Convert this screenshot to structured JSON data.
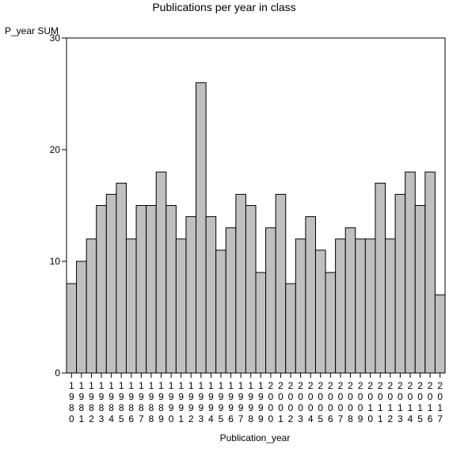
{
  "chart_data": {
    "type": "bar",
    "title": "Publications per year in class",
    "ylabel": "P_year SUM",
    "xlabel": "Publication_year",
    "ylim": [
      0,
      30
    ],
    "yticks": [
      0,
      10,
      20,
      30
    ],
    "categories": [
      "1980",
      "1981",
      "1982",
      "1983",
      "1984",
      "1985",
      "1986",
      "1987",
      "1988",
      "1989",
      "1990",
      "1991",
      "1992",
      "1993",
      "1994",
      "1995",
      "1996",
      "1997",
      "1998",
      "1999",
      "2000",
      "2001",
      "2002",
      "2003",
      "2004",
      "2005",
      "2006",
      "2007",
      "2008",
      "2009",
      "2010",
      "2011",
      "2012",
      "2013",
      "2014",
      "2015",
      "2016",
      "2017"
    ],
    "values": [
      8,
      10,
      12,
      15,
      16,
      17,
      12,
      15,
      15,
      18,
      15,
      12,
      14,
      26,
      14,
      11,
      13,
      16,
      15,
      9,
      13,
      16,
      8,
      12,
      14,
      11,
      9,
      12,
      13,
      12,
      12,
      17,
      12,
      16,
      18,
      15,
      18,
      7
    ],
    "grid": false,
    "colors": {
      "bar_fill": "#c0c0c0",
      "bar_stroke": "#000000"
    }
  }
}
